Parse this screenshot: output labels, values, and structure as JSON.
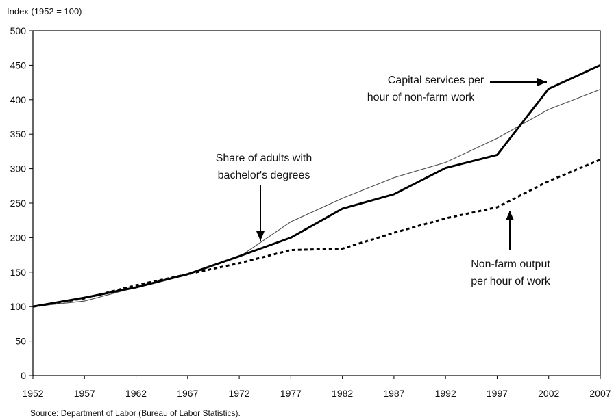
{
  "chart_data": {
    "type": "line",
    "ylabel": "Index (1952 = 100)",
    "ylim": [
      0,
      500
    ],
    "yticks": [
      0,
      50,
      100,
      150,
      200,
      250,
      300,
      350,
      400,
      450,
      500
    ],
    "xticks": [
      1952,
      1957,
      1962,
      1967,
      1972,
      1977,
      1982,
      1987,
      1992,
      1997,
      2002,
      2007
    ],
    "xlim": [
      1952,
      2007
    ],
    "grid": false,
    "series": [
      {
        "name": "Capital services per hour of non-farm work",
        "style": "thick-solid",
        "color": "#000000",
        "x": [
          1952,
          1957,
          1962,
          1967,
          1972,
          1977,
          1982,
          1987,
          1992,
          1997,
          2002,
          2007
        ],
        "values": [
          100,
          113,
          128,
          147,
          173,
          200,
          242,
          263,
          301,
          320,
          416,
          450
        ]
      },
      {
        "name": "Share of adults with bachelor's degrees",
        "style": "thin-solid",
        "color": "#555555",
        "x": [
          1952,
          1957,
          1962,
          1967,
          1972,
          1977,
          1982,
          1987,
          1992,
          1997,
          2002,
          2007
        ],
        "values": [
          100,
          108,
          128,
          148,
          172,
          223,
          257,
          287,
          309,
          344,
          386,
          415
        ]
      },
      {
        "name": "Non-farm output per hour of work",
        "style": "dashed",
        "color": "#000000",
        "x": [
          1952,
          1957,
          1962,
          1967,
          1972,
          1977,
          1982,
          1987,
          1992,
          1997,
          2002,
          2007
        ],
        "values": [
          100,
          112,
          131,
          147,
          163,
          182,
          184,
          207,
          228,
          244,
          282,
          313
        ]
      }
    ],
    "annotations": [
      {
        "key": "capital",
        "lines": [
          "Capital services per",
          "hour of non-farm work"
        ]
      },
      {
        "key": "degrees",
        "lines": [
          "Share of adults with",
          "bachelor's degrees"
        ]
      },
      {
        "key": "output",
        "lines": [
          "Non-farm output",
          "per hour of work"
        ]
      }
    ],
    "source": "Source: Department of Labor (Bureau of Labor Statistics)."
  }
}
